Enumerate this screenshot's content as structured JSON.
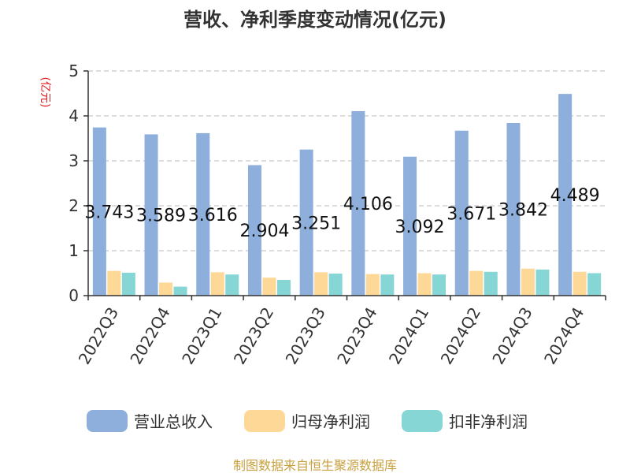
{
  "chart_data": {
    "type": "bar",
    "title": "营收、净利季度变动情况(亿元)",
    "unit_label": "(亿元)",
    "categories": [
      "2022Q3",
      "2022Q4",
      "2023Q1",
      "2023Q2",
      "2023Q3",
      "2023Q4",
      "2024Q1",
      "2024Q2",
      "2024Q3",
      "2024Q4"
    ],
    "series": [
      {
        "name": "营业总收入",
        "color": "#8eaedb",
        "values": [
          3.743,
          3.589,
          3.616,
          2.904,
          3.251,
          4.106,
          3.092,
          3.671,
          3.842,
          4.489
        ]
      },
      {
        "name": "归母净利润",
        "color": "#fdd896",
        "values": [
          0.55,
          0.29,
          0.52,
          0.4,
          0.52,
          0.48,
          0.5,
          0.55,
          0.6,
          0.53
        ]
      },
      {
        "name": "扣非净利润",
        "color": "#87d6d6",
        "values": [
          0.51,
          0.2,
          0.47,
          0.35,
          0.49,
          0.47,
          0.47,
          0.53,
          0.58,
          0.5
        ]
      }
    ],
    "data_labels": [
      "3.743",
      "3.589",
      "3.616",
      "2.904",
      "3.251",
      "4.106",
      "3.092",
      "3.671",
      "3.842",
      "4.489"
    ],
    "ylim": [
      0,
      5
    ],
    "yticks": [
      "0",
      "1",
      "2",
      "3",
      "4",
      "5"
    ],
    "grid": true,
    "legend_position": "bottom",
    "unit_color": "#e02020"
  },
  "source": {
    "text": "制图数据来自恒生聚源数据库",
    "color": "#c8a040"
  }
}
